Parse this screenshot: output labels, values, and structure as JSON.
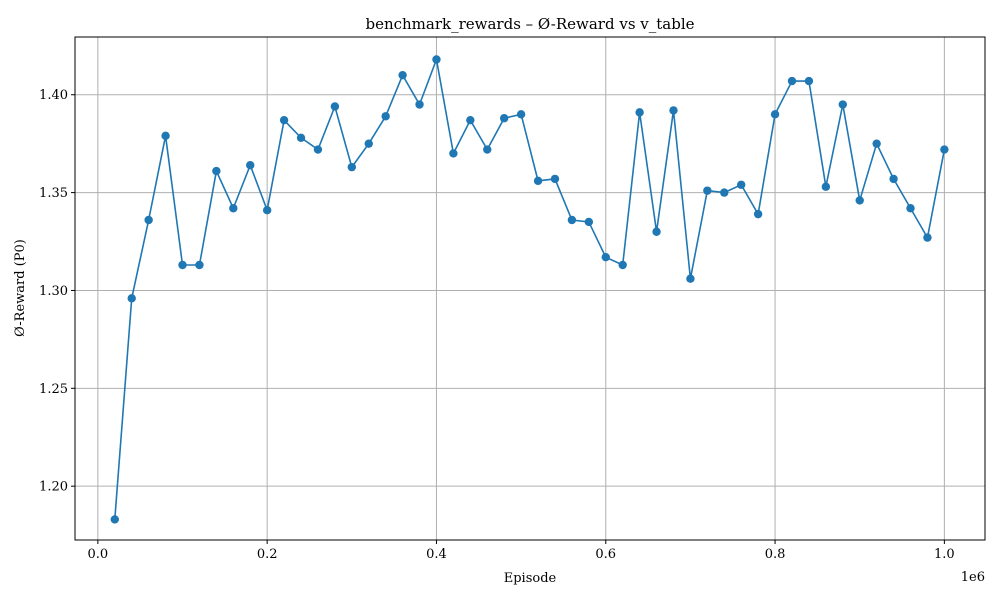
{
  "chart_data": {
    "type": "line",
    "title": "benchmark_rewards – Ø-Reward vs v_table",
    "xlabel": "Episode",
    "ylabel": "Ø-Reward (P0)",
    "x_offset_label": "1e6",
    "xlim": [
      -27000,
      1048000
    ],
    "ylim": [
      1.1725,
      1.4295
    ],
    "xticks": [
      0.0,
      0.2,
      0.4,
      0.6,
      0.8,
      1.0
    ],
    "xtick_labels": [
      "0.0",
      "0.2",
      "0.4",
      "0.6",
      "0.8",
      "1.0"
    ],
    "yticks": [
      1.2,
      1.25,
      1.3,
      1.35,
      1.4
    ],
    "ytick_labels": [
      "1.20",
      "1.25",
      "1.30",
      "1.35",
      "1.40"
    ],
    "grid": true,
    "line_color": "#1f77b4",
    "series": [
      {
        "x": [
          20000,
          40000,
          60000,
          80000,
          100000,
          120000,
          140000,
          160000,
          180000,
          200000,
          220000,
          240000,
          260000,
          280000,
          300000,
          320000,
          340000,
          360000,
          380000,
          400000,
          420000,
          440000,
          460000,
          480000,
          500000,
          520000,
          540000,
          560000,
          580000,
          600000,
          620000,
          640000,
          660000,
          680000,
          700000,
          720000,
          740000,
          760000,
          780000,
          800000,
          820000,
          840000,
          860000,
          880000,
          900000,
          920000,
          940000,
          960000,
          980000,
          1000000
        ],
        "values": [
          1.183,
          1.296,
          1.336,
          1.379,
          1.313,
          1.313,
          1.361,
          1.342,
          1.364,
          1.341,
          1.387,
          1.378,
          1.372,
          1.394,
          1.363,
          1.375,
          1.389,
          1.41,
          1.395,
          1.418,
          1.37,
          1.387,
          1.372,
          1.388,
          1.39,
          1.356,
          1.357,
          1.336,
          1.335,
          1.317,
          1.313,
          1.391,
          1.33,
          1.392,
          1.306,
          1.351,
          1.35,
          1.354,
          1.339,
          1.39,
          1.407,
          1.407,
          1.353,
          1.395,
          1.346,
          1.375,
          1.357,
          1.342,
          1.327,
          1.372
        ]
      }
    ]
  }
}
